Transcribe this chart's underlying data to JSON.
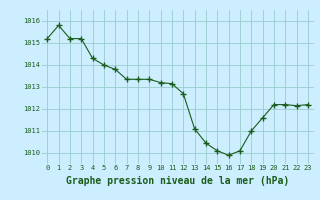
{
  "x": [
    0,
    1,
    2,
    3,
    4,
    5,
    6,
    7,
    8,
    9,
    10,
    11,
    12,
    13,
    14,
    15,
    16,
    17,
    18,
    19,
    20,
    21,
    22,
    23
  ],
  "y": [
    1015.2,
    1015.8,
    1015.2,
    1015.2,
    1014.3,
    1014.0,
    1013.8,
    1013.35,
    1013.35,
    1013.35,
    1013.2,
    1013.15,
    1012.7,
    1011.1,
    1010.45,
    1010.1,
    1009.9,
    1010.1,
    1011.0,
    1011.6,
    1012.2,
    1012.2,
    1012.15,
    1012.2
  ],
  "xlabel": "Graphe pression niveau de la mer (hPa)",
  "ylim": [
    1009.5,
    1016.5
  ],
  "xlim": [
    -0.5,
    23.5
  ],
  "yticks": [
    1010,
    1011,
    1012,
    1013,
    1014,
    1015,
    1016
  ],
  "xticks": [
    0,
    1,
    2,
    3,
    4,
    5,
    6,
    7,
    8,
    9,
    10,
    11,
    12,
    13,
    14,
    15,
    16,
    17,
    18,
    19,
    20,
    21,
    22,
    23
  ],
  "line_color": "#1a5c1a",
  "marker_color": "#1a5c1a",
  "bg_color": "#cceeff",
  "grid_color": "#99cccc",
  "xlabel_fontsize": 7.0,
  "xlabel_fontweight": "bold",
  "tick_fontsize": 5.0
}
